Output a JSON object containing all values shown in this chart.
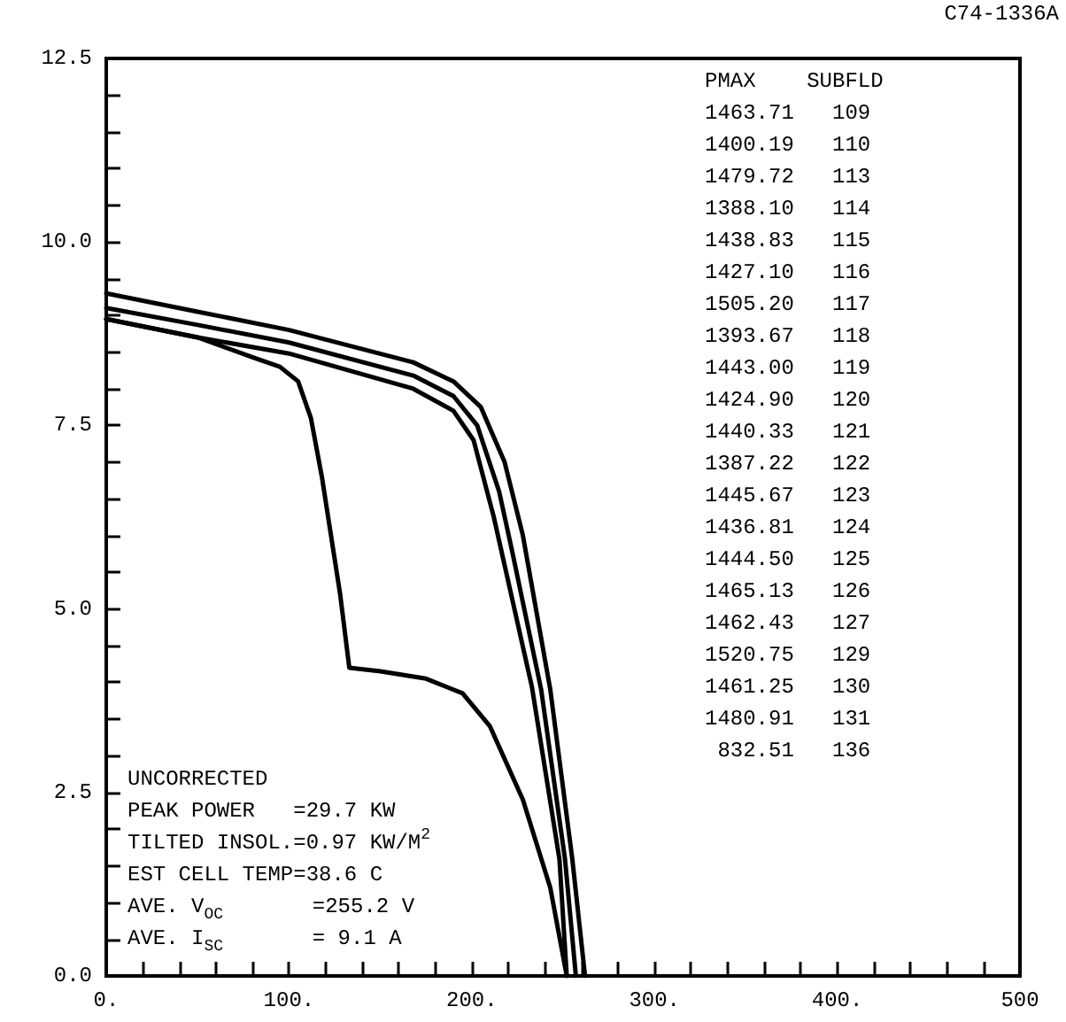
{
  "chart_data": {
    "type": "line",
    "series": [
      {
        "color": "#000000",
        "x": [
          0,
          50,
          100,
          168,
          190,
          205,
          218,
          228,
          243,
          255,
          262
        ],
        "values": [
          9.3,
          9.05,
          8.8,
          8.36,
          8.1,
          7.75,
          7.0,
          6.0,
          3.9,
          1.6,
          0
        ]
      },
      {
        "color": "#000000",
        "x": [
          0,
          50,
          100,
          168,
          190,
          203,
          215,
          222,
          238,
          251,
          257
        ],
        "values": [
          9.1,
          8.87,
          8.63,
          8.18,
          7.9,
          7.5,
          6.6,
          5.8,
          3.9,
          1.6,
          0
        ]
      },
      {
        "color": "#000000",
        "x": [
          0,
          50,
          100,
          168,
          190,
          201,
          212,
          233,
          248,
          252
        ],
        "values": [
          8.95,
          8.7,
          8.48,
          8.0,
          7.7,
          7.3,
          6.26,
          3.93,
          1.59,
          0
        ]
      },
      {
        "color": "#000000",
        "x": [
          0,
          50,
          80,
          95,
          105,
          112,
          118,
          128,
          133,
          150,
          175,
          195,
          210,
          228,
          243,
          252
        ],
        "values": [
          8.95,
          8.7,
          8.43,
          8.3,
          8.1,
          7.6,
          6.8,
          5.2,
          4.2,
          4.15,
          4.05,
          3.85,
          3.4,
          2.4,
          1.2,
          0
        ]
      }
    ],
    "xlim": [
      0,
      500
    ],
    "xticks": [
      {
        "value": 0,
        "label": "0."
      },
      {
        "value": 20,
        "label": null
      },
      {
        "value": 40,
        "label": null
      },
      {
        "value": 60,
        "label": null
      },
      {
        "value": 80,
        "label": null
      },
      {
        "value": 100,
        "label": "100."
      },
      {
        "value": 120,
        "label": null
      },
      {
        "value": 140,
        "label": null
      },
      {
        "value": 160,
        "label": null
      },
      {
        "value": 180,
        "label": null
      },
      {
        "value": 200,
        "label": "200."
      },
      {
        "value": 220,
        "label": null
      },
      {
        "value": 240,
        "label": null
      },
      {
        "value": 260,
        "label": null
      },
      {
        "value": 280,
        "label": null
      },
      {
        "value": 300,
        "label": "300."
      },
      {
        "value": 320,
        "label": null
      },
      {
        "value": 340,
        "label": null
      },
      {
        "value": 360,
        "label": null
      },
      {
        "value": 380,
        "label": null
      },
      {
        "value": 400,
        "label": "400."
      },
      {
        "value": 420,
        "label": null
      },
      {
        "value": 440,
        "label": null
      },
      {
        "value": 460,
        "label": null
      },
      {
        "value": 480,
        "label": null
      },
      {
        "value": 500,
        "label": "500"
      }
    ],
    "ylim": [
      0,
      12.5
    ],
    "yticks": [
      {
        "value": 0,
        "label": "0.0"
      },
      {
        "value": 0.5,
        "label": null
      },
      {
        "value": 1,
        "label": null
      },
      {
        "value": 1.5,
        "label": null
      },
      {
        "value": 2,
        "label": null
      },
      {
        "value": 2.5,
        "label": "2.5"
      },
      {
        "value": 3,
        "label": null
      },
      {
        "value": 3.5,
        "label": null
      },
      {
        "value": 4,
        "label": null
      },
      {
        "value": 4.5,
        "label": null
      },
      {
        "value": 5,
        "label": "5.0"
      },
      {
        "value": 5.5,
        "label": null
      },
      {
        "value": 6,
        "label": null
      },
      {
        "value": 6.5,
        "label": null
      },
      {
        "value": 7,
        "label": null
      },
      {
        "value": 7.5,
        "label": "7.5"
      },
      {
        "value": 8,
        "label": null
      },
      {
        "value": 8.5,
        "label": null
      },
      {
        "value": 9,
        "label": null
      },
      {
        "value": 9.5,
        "label": null
      },
      {
        "value": 10,
        "label": "10.0"
      },
      {
        "value": 10.5,
        "label": null
      },
      {
        "value": 11,
        "label": null
      },
      {
        "value": 11.5,
        "label": null
      },
      {
        "value": 12,
        "label": null
      },
      {
        "value": 12.5,
        "label": "12.5"
      }
    ],
    "grid": false,
    "marker": "none",
    "line_style": "solid",
    "annotations": [
      "C74-1336A",
      "PMAX    SUBFLD\n1463.71   109\n1400.19   110\n1479.72   113\n1388.10   114\n1438.83   115\n1427.10   116\n1505.20   117\n1393.67   118\n1443.00   119\n1424.90   120\n1440.33   121\n1387.22   122\n1445.67   123\n1436.81   124\n1444.50   125\n1465.13   126\n1462.43   127\n1520.75   129\n1461.25   130\n1480.91   131\n 832.51   136",
      "UNCORRECTED\nPEAK POWER   =29.7 KW\nTILTED INSOL.=0.97 KW/M$^{2}$\nEST CELL TEMP=38.6 C\nAVE. V$_{OC}$       =255.2 V\nAVE. I$_{SC}$       = 9.1 A"
    ]
  }
}
